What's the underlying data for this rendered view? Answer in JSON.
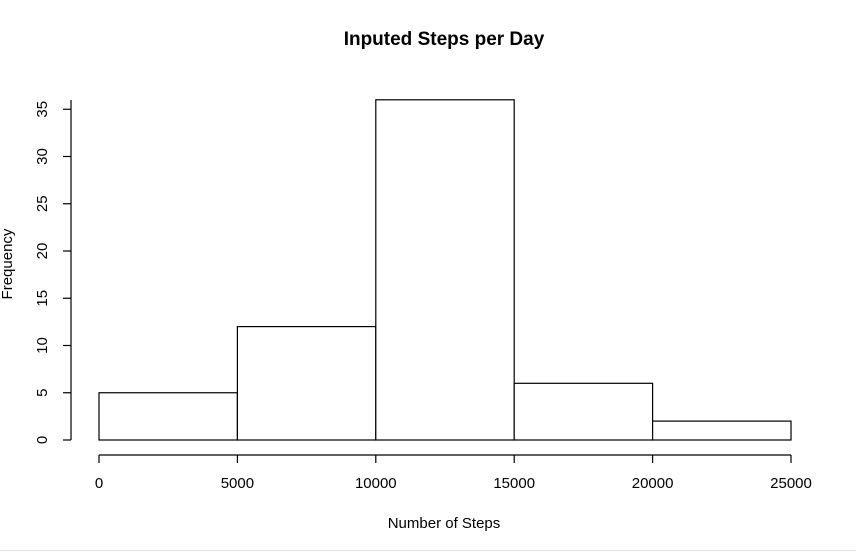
{
  "chart_data": {
    "type": "bar",
    "title": "Inputed Steps per Day",
    "xlabel": "Number of Steps",
    "ylabel": "Frequency",
    "bins": [
      {
        "from": 0,
        "to": 5000,
        "value": 5
      },
      {
        "from": 5000,
        "to": 10000,
        "value": 12
      },
      {
        "from": 10000,
        "to": 15000,
        "value": 36
      },
      {
        "from": 15000,
        "to": 20000,
        "value": 6
      },
      {
        "from": 20000,
        "to": 25000,
        "value": 2
      }
    ],
    "xlim": [
      0,
      25000
    ],
    "ylim": [
      0,
      36
    ],
    "xticks": [
      0,
      5000,
      10000,
      15000,
      20000,
      25000
    ],
    "yticks": [
      0,
      5,
      10,
      15,
      20,
      25,
      30,
      35
    ],
    "grid": false,
    "bar_fill": "#ffffff",
    "bar_stroke": "#000000"
  }
}
